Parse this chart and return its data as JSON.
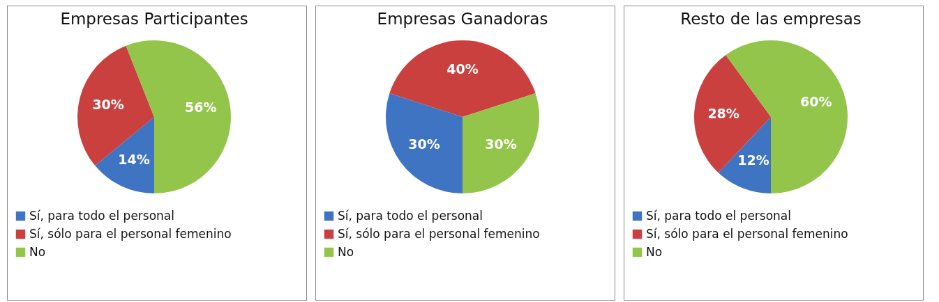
{
  "chart_data": [
    {
      "type": "pie",
      "title": "Empresas Participantes",
      "categories": [
        "Sí, para todo el personal",
        "Sí, sólo para el personal femenino",
        "No"
      ],
      "values": [
        14,
        30,
        56
      ],
      "value_labels": [
        "14%",
        "30%",
        "56%"
      ],
      "colors": [
        "#3f74c2",
        "#c9403e",
        "#92c54a"
      ],
      "legend": "bottom"
    },
    {
      "type": "pie",
      "title": "Empresas Ganadoras",
      "categories": [
        "Sí, para todo el personal",
        "Sí, sólo para el personal femenino",
        "No"
      ],
      "values": [
        30,
        40,
        30
      ],
      "value_labels": [
        "30%",
        "40%",
        "30%"
      ],
      "colors": [
        "#3f74c2",
        "#c9403e",
        "#92c54a"
      ],
      "legend": "bottom"
    },
    {
      "type": "pie",
      "title": "Resto de las empresas",
      "categories": [
        "Sí, para todo el personal",
        "Sí, sólo para el personal femenino",
        "No"
      ],
      "values": [
        12,
        28,
        60
      ],
      "value_labels": [
        "12%",
        "28%",
        "60%"
      ],
      "colors": [
        "#3f74c2",
        "#c9403e",
        "#92c54a"
      ],
      "legend": "bottom"
    }
  ]
}
